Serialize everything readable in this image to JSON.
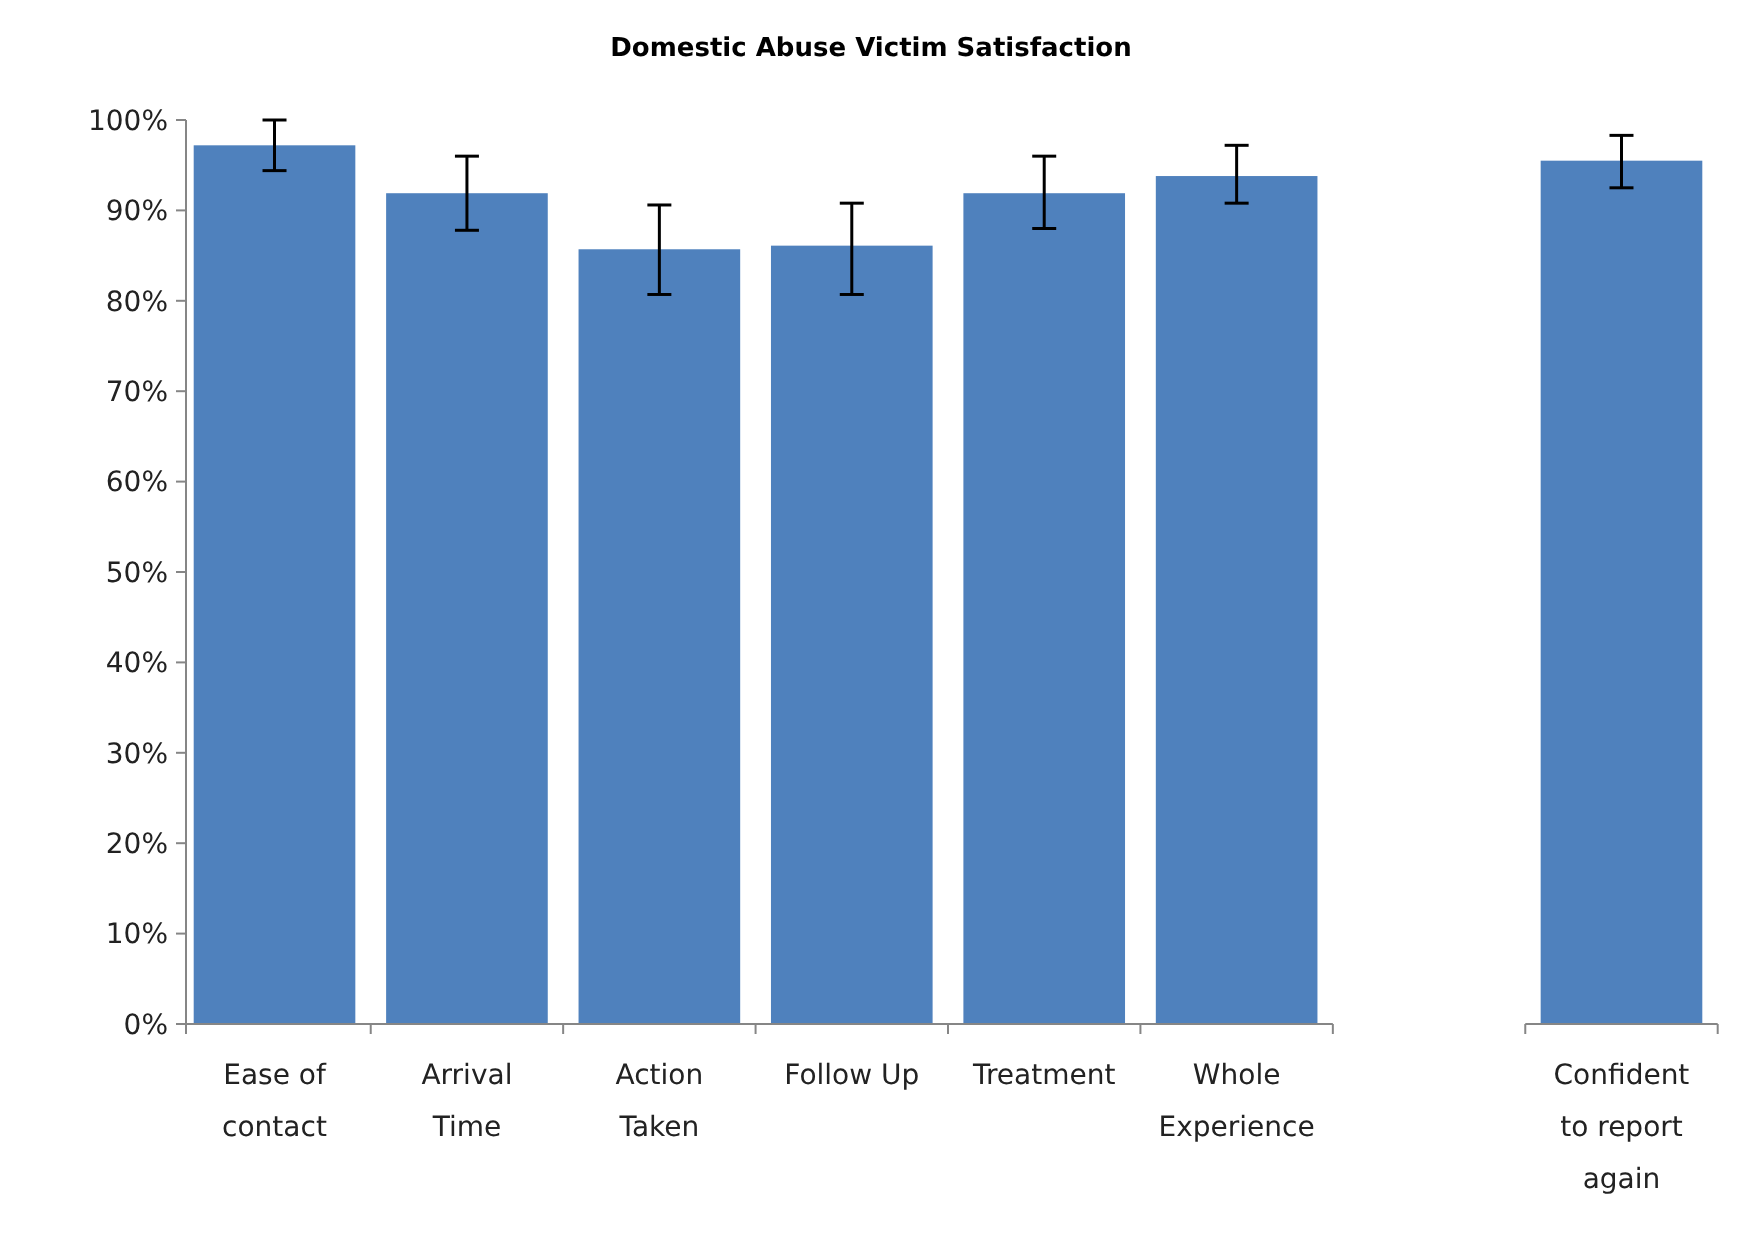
{
  "chart_data": {
    "type": "bar",
    "title": "Domestic Abuse Victim Satisfaction",
    "categories": [
      "Ease of contact",
      "Arrival Time",
      "Action Taken",
      "Follow Up",
      "Treatment",
      "Whole Experience",
      null,
      "Confident to report again"
    ],
    "values": [
      97.2,
      91.9,
      85.7,
      86.1,
      91.9,
      93.8,
      null,
      95.5
    ],
    "errors": [
      [
        94.4,
        100
      ],
      [
        87.8,
        96
      ],
      [
        80.7,
        90.6
      ],
      [
        80.7,
        90.8
      ],
      [
        88,
        96
      ],
      [
        90.8,
        97.2
      ],
      null,
      [
        92.5,
        98.3
      ]
    ],
    "color": "#4f81bd",
    "ylim": [
      0,
      100
    ],
    "yticks": [
      {
        "value": 0,
        "label": "0%"
      },
      {
        "value": 10,
        "label": "10%"
      },
      {
        "value": 20,
        "label": "20%"
      },
      {
        "value": 30,
        "label": "30%"
      },
      {
        "value": 40,
        "label": "40%"
      },
      {
        "value": 50,
        "label": "50%"
      },
      {
        "value": 60,
        "label": "60%"
      },
      {
        "value": 70,
        "label": "70%"
      },
      {
        "value": 80,
        "label": "80%"
      },
      {
        "value": 90,
        "label": "90%"
      },
      {
        "value": 100,
        "label": "100%"
      }
    ],
    "orientation": "vertical"
  }
}
